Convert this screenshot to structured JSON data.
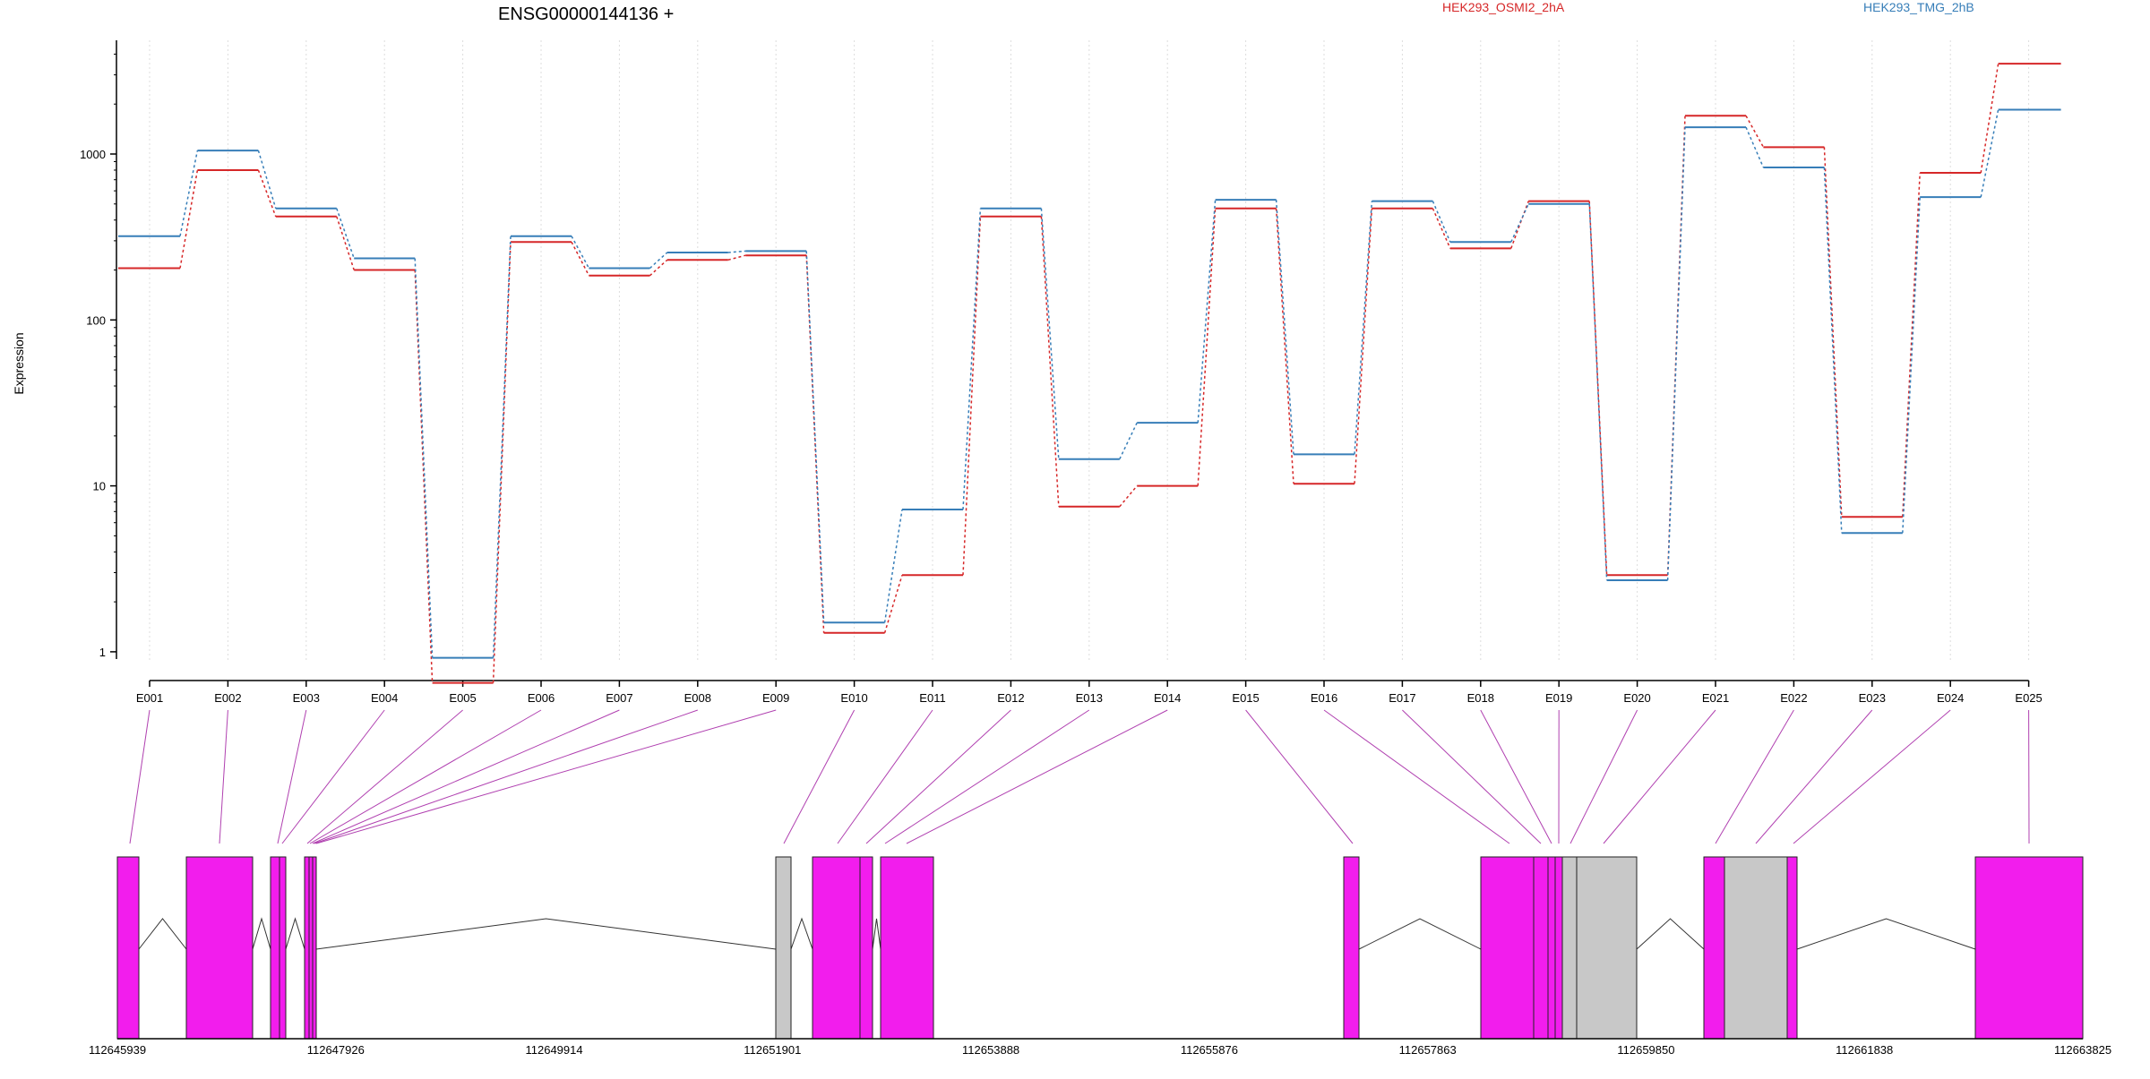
{
  "chart_data": {
    "type": "line",
    "title": "ENSG00000144136 +",
    "ylabel": "Expression",
    "y_scale": "log",
    "ylim": [
      0.4,
      5000
    ],
    "y_ticks": [
      1,
      10,
      100,
      1000
    ],
    "y_tick_labels": [
      "1",
      "10",
      "100",
      "1000"
    ],
    "grid": "vertical-dotted",
    "legend_placement": "top",
    "categories": [
      "E001",
      "E002",
      "E003",
      "E004",
      "E005",
      "E006",
      "E007",
      "E008",
      "E009",
      "E010",
      "E011",
      "E012",
      "E013",
      "E014",
      "E015",
      "E016",
      "E017",
      "E018",
      "E019",
      "E020",
      "E021",
      "E022",
      "E023",
      "E024",
      "E025"
    ],
    "series": [
      {
        "name": "HEK293_OSMI2_2hA",
        "color": "#d62728",
        "values": [
          205,
          800,
          420,
          200,
          0.65,
          295,
          185,
          230,
          245,
          1.3,
          2.9,
          420,
          7.5,
          10,
          470,
          10.3,
          470,
          270,
          520,
          2.9,
          1700,
          1100,
          6.5,
          770,
          3500
        ]
      },
      {
        "name": "HEK293_TMG_2hB",
        "color": "#377eb8",
        "values": [
          320,
          1050,
          470,
          235,
          0.92,
          320,
          205,
          255,
          260,
          1.5,
          7.2,
          470,
          14.5,
          24,
          530,
          15.5,
          520,
          295,
          500,
          2.7,
          1450,
          830,
          5.2,
          550,
          1850
        ]
      }
    ],
    "gene_model": {
      "coordinate_ticks": [
        "112645939",
        "112647926",
        "112649914",
        "112651901",
        "112653888",
        "112655876",
        "112657863",
        "112659850",
        "112661838",
        "112663825"
      ],
      "colors": {
        "exon": "#f21ded",
        "other_exon": "#c8c8c8",
        "connector": "#b040b0"
      }
    }
  }
}
